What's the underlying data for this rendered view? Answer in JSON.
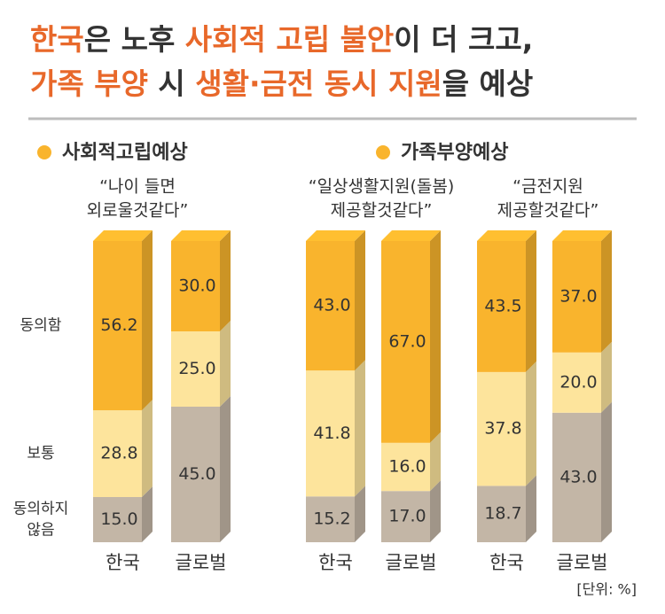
{
  "title": {
    "lines": [
      [
        {
          "text": "한국",
          "highlight": true
        },
        {
          "text": "은 노후 ",
          "highlight": false
        },
        {
          "text": "사회적 고립 불안",
          "highlight": true
        },
        {
          "text": "이 더 크고,",
          "highlight": false
        }
      ],
      [
        {
          "text": "가족 부양",
          "highlight": true
        },
        {
          "text": " 시 ",
          "highlight": false
        },
        {
          "text": "생활·금전 동시 지원",
          "highlight": true
        },
        {
          "text": "을 예상",
          "highlight": false
        }
      ]
    ],
    "highlight_color": "#e8682a"
  },
  "groups": [
    {
      "label": "사회적고립예상",
      "color": "#f9b42d"
    },
    {
      "label": "가족부양예상",
      "color": "#f9b42d"
    }
  ],
  "segment_labels": [
    [
      "동의하지",
      "않음"
    ],
    [
      "보통"
    ],
    [
      "동의함"
    ]
  ],
  "unit_note": "[단위: %]",
  "chart_data": [
    {
      "type": "bar",
      "stacked": true,
      "caption": [
        "“나이 들면",
        "외로울것같다”"
      ],
      "categories": [
        "한국",
        "글로벌"
      ],
      "ylim": [
        0,
        100
      ],
      "series": [
        {
          "color": "#c3b6a6",
          "values": [
            15,
            45
          ],
          "value_labels": [
            "15.0",
            "45.0"
          ]
        },
        {
          "color": "#fde49c",
          "values": [
            28.8,
            25
          ],
          "value_labels": [
            "28.8",
            "25.0"
          ]
        },
        {
          "color": "#f9b42d",
          "values": [
            56.2,
            30
          ],
          "value_labels": [
            "56.2",
            "30.0"
          ]
        }
      ]
    },
    {
      "type": "bar",
      "stacked": true,
      "caption": [
        "“일상생활지원(돌봄)",
        "제공할것같다”"
      ],
      "categories": [
        "한국",
        "글로벌"
      ],
      "ylim": [
        0,
        100
      ],
      "series": [
        {
          "color": "#c3b6a6",
          "values": [
            15.2,
            17
          ],
          "value_labels": [
            "15.2",
            "17.0"
          ]
        },
        {
          "color": "#fde49c",
          "values": [
            41.8,
            16
          ],
          "value_labels": [
            "41.8",
            "16.0"
          ]
        },
        {
          "color": "#f9b42d",
          "values": [
            43,
            67
          ],
          "value_labels": [
            "43.0",
            "67.0"
          ]
        }
      ]
    },
    {
      "type": "bar",
      "stacked": true,
      "caption": [
        "“금전지원",
        "제공할것같다”"
      ],
      "categories": [
        "한국",
        "글로벌"
      ],
      "ylim": [
        0,
        100
      ],
      "series": [
        {
          "color": "#c3b6a6",
          "values": [
            18.7,
            43
          ],
          "value_labels": [
            "18.7",
            "43.0"
          ]
        },
        {
          "color": "#fde49c",
          "values": [
            37.8,
            20
          ],
          "value_labels": [
            "37.8",
            "20.0"
          ]
        },
        {
          "color": "#f9b42d",
          "values": [
            43.5,
            37
          ],
          "value_labels": [
            "43.5",
            "37.0"
          ]
        }
      ]
    }
  ]
}
